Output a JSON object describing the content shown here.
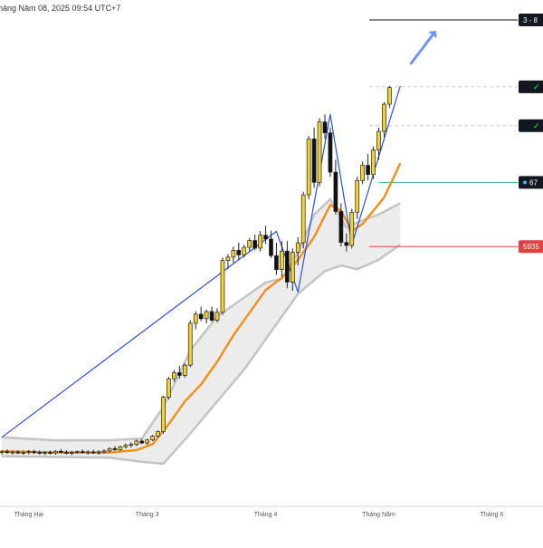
{
  "header": {
    "date_text": "háng Năm 08, 2025 09:54 UTC+7"
  },
  "colors": {
    "up_candle": "#f2d22e",
    "down_candle": "#111111",
    "ma_line": "#f0901e",
    "band_fill": "#e6e6e6",
    "band_edge": "#c4c4c4",
    "trend_line": "#2b4fd8",
    "arrow": "#6f96f0",
    "level_top": "#111111",
    "level_dashed": "#cccccc",
    "level_entry": "#29b3a6",
    "level_stop": "#e04040",
    "badge_dark": "#131722",
    "badge_stop_bg": "#e04040"
  },
  "chart_data": {
    "type": "candlestick",
    "x_ticks": [
      "Tháng Hai",
      "Tháng 3",
      "Tháng 4",
      "Tháng Năm",
      "Tháng 6"
    ],
    "x_tick_index": [
      5,
      27,
      49,
      70,
      91
    ],
    "ylim": [
      0,
      100
    ],
    "candles": [
      {
        "o": 3.0,
        "h": 3.6,
        "l": 2.4,
        "c": 3.2
      },
      {
        "o": 3.2,
        "h": 3.8,
        "l": 2.6,
        "c": 3.0
      },
      {
        "o": 3.0,
        "h": 3.5,
        "l": 2.5,
        "c": 3.1
      },
      {
        "o": 3.1,
        "h": 3.6,
        "l": 2.6,
        "c": 2.9
      },
      {
        "o": 2.9,
        "h": 3.5,
        "l": 2.4,
        "c": 3.0
      },
      {
        "o": 3.0,
        "h": 3.6,
        "l": 2.5,
        "c": 3.2
      },
      {
        "o": 3.2,
        "h": 3.7,
        "l": 2.6,
        "c": 3.0
      },
      {
        "o": 3.0,
        "h": 3.5,
        "l": 2.5,
        "c": 2.8
      },
      {
        "o": 2.8,
        "h": 3.4,
        "l": 2.3,
        "c": 3.0
      },
      {
        "o": 3.0,
        "h": 3.5,
        "l": 2.5,
        "c": 2.9
      },
      {
        "o": 2.9,
        "h": 3.6,
        "l": 2.4,
        "c": 3.3
      },
      {
        "o": 3.3,
        "h": 3.9,
        "l": 2.8,
        "c": 3.0
      },
      {
        "o": 3.0,
        "h": 3.6,
        "l": 2.5,
        "c": 2.8
      },
      {
        "o": 2.8,
        "h": 3.4,
        "l": 2.3,
        "c": 3.0
      },
      {
        "o": 3.0,
        "h": 3.5,
        "l": 2.6,
        "c": 3.2
      },
      {
        "o": 3.2,
        "h": 3.8,
        "l": 2.7,
        "c": 3.0
      },
      {
        "o": 3.0,
        "h": 3.6,
        "l": 2.5,
        "c": 3.1
      },
      {
        "o": 3.1,
        "h": 3.7,
        "l": 2.6,
        "c": 2.9
      },
      {
        "o": 2.9,
        "h": 3.6,
        "l": 2.4,
        "c": 3.1
      },
      {
        "o": 3.1,
        "h": 3.8,
        "l": 2.7,
        "c": 3.4
      },
      {
        "o": 3.4,
        "h": 4.4,
        "l": 3.0,
        "c": 4.0
      },
      {
        "o": 4.0,
        "h": 4.7,
        "l": 3.5,
        "c": 3.7
      },
      {
        "o": 3.7,
        "h": 4.8,
        "l": 3.4,
        "c": 4.5
      },
      {
        "o": 4.5,
        "h": 5.4,
        "l": 4.0,
        "c": 4.9
      },
      {
        "o": 4.9,
        "h": 5.7,
        "l": 4.3,
        "c": 5.1
      },
      {
        "o": 5.1,
        "h": 6.4,
        "l": 4.7,
        "c": 6.0
      },
      {
        "o": 6.0,
        "h": 6.6,
        "l": 5.2,
        "c": 5.5
      },
      {
        "o": 5.5,
        "h": 6.6,
        "l": 5.0,
        "c": 6.3
      },
      {
        "o": 6.3,
        "h": 7.6,
        "l": 6.0,
        "c": 7.3
      },
      {
        "o": 7.3,
        "h": 8.8,
        "l": 7.0,
        "c": 8.5
      },
      {
        "o": 8.5,
        "h": 18.0,
        "l": 8.0,
        "c": 17.6
      },
      {
        "o": 17.6,
        "h": 23.0,
        "l": 17.0,
        "c": 22.5
      },
      {
        "o": 22.5,
        "h": 24.8,
        "l": 21.6,
        "c": 24.1
      },
      {
        "o": 24.1,
        "h": 26.0,
        "l": 22.5,
        "c": 23.4
      },
      {
        "o": 23.4,
        "h": 26.6,
        "l": 22.8,
        "c": 26.1
      },
      {
        "o": 26.1,
        "h": 38.0,
        "l": 25.6,
        "c": 37.2
      },
      {
        "o": 37.2,
        "h": 40.4,
        "l": 35.6,
        "c": 39.6
      },
      {
        "o": 39.6,
        "h": 41.6,
        "l": 37.8,
        "c": 38.4
      },
      {
        "o": 38.4,
        "h": 40.8,
        "l": 37.2,
        "c": 40.3
      },
      {
        "o": 40.3,
        "h": 41.6,
        "l": 37.6,
        "c": 38.0
      },
      {
        "o": 38.0,
        "h": 41.2,
        "l": 37.4,
        "c": 40.1
      },
      {
        "o": 40.1,
        "h": 54.6,
        "l": 39.4,
        "c": 53.8
      },
      {
        "o": 53.8,
        "h": 55.5,
        "l": 51.5,
        "c": 54.7
      },
      {
        "o": 54.7,
        "h": 57.5,
        "l": 53.2,
        "c": 56.5
      },
      {
        "o": 56.5,
        "h": 58.5,
        "l": 54.0,
        "c": 55.3
      },
      {
        "o": 55.3,
        "h": 58.0,
        "l": 54.6,
        "c": 57.3
      },
      {
        "o": 57.3,
        "h": 59.8,
        "l": 56.3,
        "c": 59.1
      },
      {
        "o": 59.1,
        "h": 60.7,
        "l": 56.5,
        "c": 57.1
      },
      {
        "o": 57.1,
        "h": 61.6,
        "l": 56.2,
        "c": 60.5
      },
      {
        "o": 60.5,
        "h": 63.0,
        "l": 58.2,
        "c": 59.5
      },
      {
        "o": 59.5,
        "h": 61.7,
        "l": 54.5,
        "c": 55.1
      },
      {
        "o": 55.1,
        "h": 58.5,
        "l": 50.0,
        "c": 51.4
      },
      {
        "o": 51.4,
        "h": 59.0,
        "l": 49.5,
        "c": 56.3
      },
      {
        "o": 56.3,
        "h": 59.0,
        "l": 46.5,
        "c": 48.1
      },
      {
        "o": 48.1,
        "h": 57.0,
        "l": 45.8,
        "c": 56.0
      },
      {
        "o": 56.0,
        "h": 60.0,
        "l": 52.5,
        "c": 58.5
      },
      {
        "o": 58.5,
        "h": 72.0,
        "l": 57.0,
        "c": 71.2
      },
      {
        "o": 71.2,
        "h": 86.8,
        "l": 70.0,
        "c": 86.0
      },
      {
        "o": 86.0,
        "h": 89.0,
        "l": 73.0,
        "c": 74.5
      },
      {
        "o": 74.5,
        "h": 91.5,
        "l": 73.4,
        "c": 90.5
      },
      {
        "o": 90.5,
        "h": 92.5,
        "l": 86.0,
        "c": 87.6
      },
      {
        "o": 87.6,
        "h": 89.0,
        "l": 76.0,
        "c": 77.2
      },
      {
        "o": 77.2,
        "h": 80.5,
        "l": 66.0,
        "c": 66.8
      },
      {
        "o": 66.8,
        "h": 69.0,
        "l": 57.5,
        "c": 58.6
      },
      {
        "o": 58.6,
        "h": 61.0,
        "l": 56.2,
        "c": 57.8
      },
      {
        "o": 57.8,
        "h": 67.5,
        "l": 57.0,
        "c": 66.6
      },
      {
        "o": 66.6,
        "h": 76.0,
        "l": 64.8,
        "c": 75.0
      },
      {
        "o": 75.0,
        "h": 80.0,
        "l": 74.0,
        "c": 79.0
      },
      {
        "o": 79.0,
        "h": 82.0,
        "l": 75.0,
        "c": 76.6
      },
      {
        "o": 76.6,
        "h": 84.0,
        "l": 75.4,
        "c": 83.1
      },
      {
        "o": 83.1,
        "h": 89.0,
        "l": 80.5,
        "c": 88.0
      },
      {
        "o": 88.0,
        "h": 95.8,
        "l": 86.5,
        "c": 95.2
      },
      {
        "o": 95.2,
        "h": 100.0,
        "l": 94.2,
        "c": 99.6
      }
    ],
    "ma_line": [
      [
        0,
        3.3
      ],
      [
        10,
        3.0
      ],
      [
        20,
        3.0
      ],
      [
        25,
        3.6
      ],
      [
        28,
        5.2
      ],
      [
        31,
        10.5
      ],
      [
        34,
        16.5
      ],
      [
        37,
        21.0
      ],
      [
        40,
        27.0
      ],
      [
        43,
        34.0
      ],
      [
        46,
        40.0
      ],
      [
        49,
        46.0
      ],
      [
        52,
        49.2
      ],
      [
        55,
        54.0
      ],
      [
        58,
        60.0
      ],
      [
        61,
        68.5
      ],
      [
        63,
        67.0
      ],
      [
        65,
        61.6
      ],
      [
        67,
        63.5
      ],
      [
        69,
        67.0
      ],
      [
        71,
        70.5
      ],
      [
        73,
        76.5
      ],
      [
        74,
        79.6
      ]
    ],
    "band_upper": [
      [
        0,
        7.0
      ],
      [
        10,
        6.2
      ],
      [
        20,
        6.2
      ],
      [
        26,
        6.7
      ],
      [
        30,
        15.0
      ],
      [
        35,
        30.0
      ],
      [
        40,
        39.0
      ],
      [
        45,
        44.0
      ],
      [
        49,
        48.0
      ],
      [
        52,
        49.0
      ],
      [
        55,
        56.0
      ],
      [
        58,
        66.0
      ],
      [
        61,
        70.0
      ],
      [
        64,
        62.5
      ],
      [
        67,
        64.5
      ],
      [
        70,
        66.0
      ],
      [
        72,
        67.5
      ],
      [
        74,
        69.0
      ]
    ],
    "band_lower": [
      [
        0,
        2.0
      ],
      [
        10,
        1.8
      ],
      [
        20,
        1.6
      ],
      [
        26,
        0.5
      ],
      [
        30,
        0.0
      ],
      [
        35,
        8.0
      ],
      [
        40,
        16.5
      ],
      [
        45,
        25.0
      ],
      [
        50,
        35.0
      ],
      [
        55,
        45.0
      ],
      [
        60,
        51.0
      ],
      [
        63,
        52.5
      ],
      [
        66,
        51.5
      ],
      [
        70,
        54.0
      ],
      [
        74,
        58.0
      ]
    ],
    "trend_lines": [
      [
        [
          0,
          7.0
        ],
        [
          51,
          61.5
        ],
        [
          55,
          45.5
        ],
        [
          61,
          92.5
        ],
        [
          65,
          58.0
        ],
        [
          74,
          100.0
        ]
      ]
    ],
    "arrow": {
      "from": [
        76,
        106.0
      ],
      "to": [
        80,
        113.5
      ]
    },
    "levels": [
      {
        "value": 117.5,
        "style": "solid",
        "badge": "3 - 8"
      },
      {
        "value": 99.8,
        "style": "dashed",
        "badge": "✓"
      },
      {
        "value": 89.5,
        "style": "dashed",
        "badge": "✓"
      },
      {
        "value": 74.5,
        "style": "entry",
        "badge": "67"
      },
      {
        "value": 57.5,
        "style": "stop",
        "badge": "5935"
      }
    ]
  }
}
